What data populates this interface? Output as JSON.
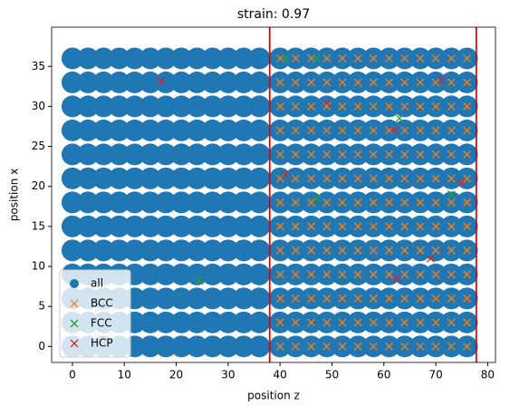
{
  "chart_data": {
    "type": "scatter",
    "title": "strain: 0.97",
    "x_label": "position z",
    "y_label": "position x",
    "xlim": [
      -4,
      81.5
    ],
    "ylim": [
      -2,
      39.9
    ],
    "xticks": [
      0,
      10,
      20,
      30,
      40,
      50,
      60,
      70,
      80
    ],
    "yticks": [
      0,
      5,
      10,
      15,
      20,
      25,
      30,
      35
    ],
    "legend": "lower left",
    "vlines": [
      38,
      77.8
    ],
    "vline_color": "#e00000",
    "series": [
      {
        "name": "all",
        "color": "#1f77b4",
        "marker": "o",
        "x": [
          0,
          3,
          6,
          9,
          12,
          15,
          18,
          21,
          24,
          27,
          30,
          33,
          36,
          40,
          43,
          46,
          49,
          52,
          55,
          58,
          61,
          64,
          67,
          70,
          73,
          76,
          0,
          3,
          6,
          9,
          12,
          15,
          18,
          21,
          24,
          27,
          30,
          33,
          36,
          40,
          43,
          46,
          49,
          52,
          55,
          58,
          61,
          64,
          67,
          70,
          73,
          76,
          0,
          3,
          6,
          9,
          12,
          15,
          18,
          21,
          24,
          27,
          30,
          33,
          36,
          40,
          43,
          46,
          49,
          52,
          55,
          58,
          61,
          64,
          67,
          70,
          73,
          76,
          0,
          3,
          6,
          9,
          12,
          15,
          18,
          21,
          24,
          27,
          30,
          33,
          36,
          40,
          43,
          46,
          49,
          52,
          55,
          58,
          61,
          64,
          67,
          70,
          73,
          76,
          0,
          3,
          6,
          9,
          12,
          15,
          18,
          21,
          24,
          27,
          30,
          33,
          36,
          40,
          43,
          46,
          49,
          52,
          55,
          58,
          61,
          64,
          67,
          70,
          73,
          76,
          0,
          3,
          6,
          9,
          12,
          15,
          18,
          21,
          24,
          27,
          30,
          33,
          36,
          40,
          43,
          46,
          49,
          52,
          55,
          58,
          61,
          64,
          67,
          70,
          73,
          76,
          0,
          3,
          6,
          9,
          12,
          15,
          18,
          21,
          24,
          27,
          30,
          33,
          36,
          40,
          43,
          46,
          49,
          52,
          55,
          58,
          61,
          64,
          67,
          70,
          73,
          76,
          0,
          3,
          6,
          9,
          12,
          15,
          18,
          21,
          24,
          27,
          30,
          33,
          36,
          40,
          43,
          46,
          49,
          52,
          55,
          58,
          61,
          64,
          67,
          70,
          73,
          76,
          0,
          3,
          6,
          9,
          12,
          15,
          18,
          21,
          24,
          27,
          30,
          33,
          36,
          40,
          43,
          46,
          49,
          52,
          55,
          58,
          61,
          64,
          67,
          70,
          73,
          76,
          0,
          3,
          6,
          9,
          12,
          15,
          18,
          21,
          24,
          27,
          30,
          33,
          36,
          40,
          43,
          46,
          49,
          52,
          55,
          58,
          61,
          64,
          67,
          70,
          73,
          76,
          0,
          3,
          6,
          9,
          12,
          15,
          18,
          21,
          24,
          27,
          30,
          33,
          36,
          40,
          43,
          46,
          49,
          52,
          55,
          58,
          61,
          64,
          67,
          70,
          73,
          76,
          0,
          3,
          6,
          9,
          12,
          15,
          18,
          21,
          24,
          27,
          30,
          33,
          36,
          40,
          43,
          46,
          49,
          52,
          55,
          58,
          61,
          64,
          67,
          70,
          73,
          76,
          0,
          3,
          6,
          9,
          12,
          15,
          18,
          21,
          24,
          27,
          30,
          33,
          36,
          40,
          43,
          46,
          49,
          52,
          55,
          58,
          61,
          64,
          67,
          70,
          73,
          76
        ],
        "y": [
          0,
          0,
          0,
          0,
          0,
          0,
          0,
          0,
          0,
          0,
          0,
          0,
          0,
          0,
          0,
          0,
          0,
          0,
          0,
          0,
          0,
          0,
          0,
          0,
          0,
          0,
          3,
          3,
          3,
          3,
          3,
          3,
          3,
          3,
          3,
          3,
          3,
          3,
          3,
          3,
          3,
          3,
          3,
          3,
          3,
          3,
          3,
          3,
          3,
          3,
          3,
          3,
          6,
          6,
          6,
          6,
          6,
          6,
          6,
          6,
          6,
          6,
          6,
          6,
          6,
          6,
          6,
          6,
          6,
          6,
          6,
          6,
          6,
          6,
          6,
          6,
          6,
          6,
          9,
          9,
          9,
          9,
          9,
          9,
          9,
          9,
          9,
          9,
          9,
          9,
          9,
          9,
          9,
          9,
          9,
          9,
          9,
          9,
          9,
          9,
          9,
          9,
          9,
          9,
          12,
          12,
          12,
          12,
          12,
          12,
          12,
          12,
          12,
          12,
          12,
          12,
          12,
          12,
          12,
          12,
          12,
          12,
          12,
          12,
          12,
          12,
          12,
          12,
          12,
          12,
          15,
          15,
          15,
          15,
          15,
          15,
          15,
          15,
          15,
          15,
          15,
          15,
          15,
          15,
          15,
          15,
          15,
          15,
          15,
          15,
          15,
          15,
          15,
          15,
          15,
          15,
          18,
          18,
          18,
          18,
          18,
          18,
          18,
          18,
          18,
          18,
          18,
          18,
          18,
          18,
          18,
          18,
          18,
          18,
          18,
          18,
          18,
          18,
          18,
          18,
          18,
          18,
          21,
          21,
          21,
          21,
          21,
          21,
          21,
          21,
          21,
          21,
          21,
          21,
          21,
          21,
          21,
          21,
          21,
          21,
          21,
          21,
          21,
          21,
          21,
          21,
          21,
          21,
          24,
          24,
          24,
          24,
          24,
          24,
          24,
          24,
          24,
          24,
          24,
          24,
          24,
          24,
          24,
          24,
          24,
          24,
          24,
          24,
          24,
          24,
          24,
          24,
          24,
          24,
          27,
          27,
          27,
          27,
          27,
          27,
          27,
          27,
          27,
          27,
          27,
          27,
          27,
          27,
          27,
          27,
          27,
          27,
          27,
          27,
          27,
          27,
          27,
          27,
          27,
          27,
          30,
          30,
          30,
          30,
          30,
          30,
          30,
          30,
          30,
          30,
          30,
          30,
          30,
          30,
          30,
          30,
          30,
          30,
          30,
          30,
          30,
          30,
          30,
          30,
          30,
          30,
          33,
          33,
          33,
          33,
          33,
          33,
          33,
          33,
          33,
          33,
          33,
          33,
          33,
          33,
          33,
          33,
          33,
          33,
          33,
          33,
          33,
          33,
          33,
          33,
          33,
          33,
          36,
          36,
          36,
          36,
          36,
          36,
          36,
          36,
          36,
          36,
          36,
          36,
          36,
          36,
          36,
          36,
          36,
          36,
          36,
          36,
          36,
          36,
          36,
          36,
          36,
          36
        ]
      },
      {
        "name": "BCC",
        "color": "#ff7f0e",
        "marker": "x",
        "x": [
          40,
          43,
          46,
          49,
          52,
          55,
          58,
          61,
          64,
          67,
          70,
          73,
          76,
          40,
          43,
          46,
          49,
          52,
          55,
          58,
          61,
          64,
          67,
          70,
          73,
          76,
          40,
          43,
          46,
          49,
          52,
          55,
          58,
          61,
          64,
          67,
          70,
          73,
          76,
          40,
          43,
          46,
          49,
          52,
          55,
          58,
          61,
          64,
          67,
          70,
          73,
          76,
          40,
          43,
          46,
          49,
          52,
          55,
          58,
          61,
          64,
          67,
          70,
          73,
          76,
          40,
          43,
          46,
          49,
          52,
          55,
          58,
          61,
          64,
          67,
          70,
          73,
          76,
          40,
          43,
          46,
          49,
          52,
          55,
          58,
          61,
          64,
          67,
          70,
          73,
          76,
          40,
          43,
          46,
          49,
          52,
          55,
          58,
          61,
          64,
          67,
          70,
          73,
          76,
          40,
          43,
          46,
          49,
          52,
          55,
          58,
          61,
          64,
          67,
          70,
          73,
          76,
          40,
          43,
          46,
          49,
          52,
          55,
          58,
          61,
          64,
          67,
          70,
          73,
          76,
          40,
          43,
          46,
          49,
          52,
          55,
          58,
          61,
          64,
          67,
          70,
          73,
          76,
          40,
          43,
          46,
          49,
          52,
          55,
          58,
          61,
          64,
          67,
          70,
          73,
          76,
          40,
          43,
          46,
          49,
          52,
          55,
          58,
          61,
          64,
          67,
          70,
          73,
          76
        ],
        "y": [
          0,
          0,
          0,
          0,
          0,
          0,
          0,
          0,
          0,
          0,
          0,
          0,
          0,
          3,
          3,
          3,
          3,
          3,
          3,
          3,
          3,
          3,
          3,
          3,
          3,
          3,
          6,
          6,
          6,
          6,
          6,
          6,
          6,
          6,
          6,
          6,
          6,
          6,
          6,
          9,
          9,
          9,
          9,
          9,
          9,
          9,
          9,
          9,
          9,
          9,
          9,
          9,
          12,
          12,
          12,
          12,
          12,
          12,
          12,
          12,
          12,
          12,
          12,
          12,
          12,
          15,
          15,
          15,
          15,
          15,
          15,
          15,
          15,
          15,
          15,
          15,
          15,
          15,
          18,
          18,
          18,
          18,
          18,
          18,
          18,
          18,
          18,
          18,
          18,
          18,
          18,
          21,
          21,
          21,
          21,
          21,
          21,
          21,
          21,
          21,
          21,
          21,
          21,
          21,
          24,
          24,
          24,
          24,
          24,
          24,
          24,
          24,
          24,
          24,
          24,
          24,
          24,
          27,
          27,
          27,
          27,
          27,
          27,
          27,
          27,
          27,
          27,
          27,
          27,
          27,
          30,
          30,
          30,
          30,
          30,
          30,
          30,
          30,
          30,
          30,
          30,
          30,
          30,
          33,
          33,
          33,
          33,
          33,
          33,
          33,
          33,
          33,
          33,
          33,
          33,
          33,
          36,
          36,
          36,
          36,
          36,
          36,
          36,
          36,
          36,
          36,
          36,
          36,
          36
        ]
      },
      {
        "name": "FCC",
        "color": "#2ca02c",
        "marker": "x",
        "x": [
          41,
          47,
          63,
          47,
          73,
          24.5
        ],
        "y": [
          36,
          36,
          28.5,
          18.5,
          19,
          8.2
        ]
      },
      {
        "name": "HCP",
        "color": "#d62728",
        "marker": "x",
        "x": [
          17,
          71,
          49,
          62,
          41,
          75,
          62.5,
          69
        ],
        "y": [
          33.2,
          33.3,
          30.5,
          27,
          21.5,
          20.5,
          8.5,
          11
        ]
      }
    ]
  }
}
